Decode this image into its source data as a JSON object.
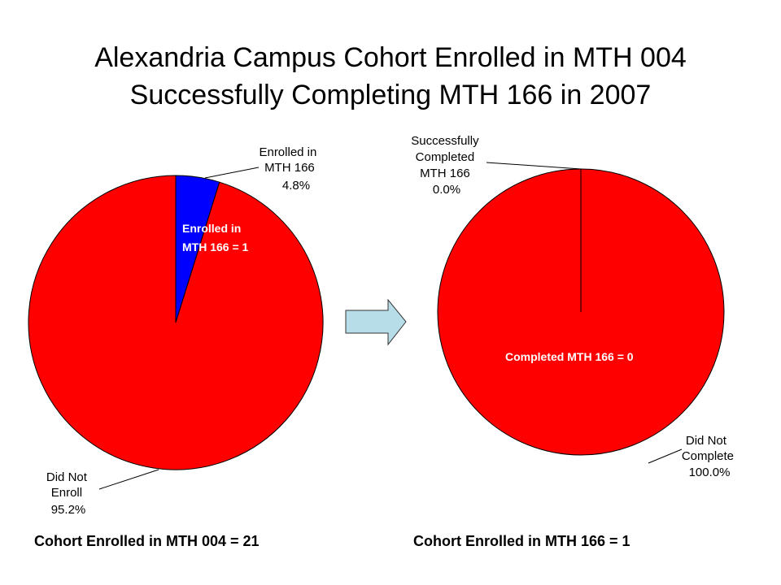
{
  "title": {
    "line1": "Alexandria Campus Cohort Enrolled in MTH 004",
    "line2": "Successfully Completing MTH 166 in 2007"
  },
  "colors": {
    "slice_red": "#ff0000",
    "slice_blue": "#0000ff",
    "arrow_fill": "#b7dde8"
  },
  "arrow": {
    "icon": "right-arrow-icon"
  },
  "chart_data": [
    {
      "type": "pie",
      "slices": [
        {
          "label_lines": [
            "Enrolled in",
            "MTH 166",
            "4.8%"
          ],
          "value": 4.8,
          "color": "#0000ff",
          "inside_label_lines": [
            "Enrolled in",
            "MTH 166 = 1"
          ]
        },
        {
          "label_lines": [
            "Did Not",
            "Enroll",
            "95.2%"
          ],
          "value": 95.2,
          "color": "#ff0000"
        }
      ],
      "caption": "Cohort Enrolled in MTH 004 = 21"
    },
    {
      "type": "pie",
      "slices": [
        {
          "label_lines": [
            "Successfully",
            "Completed",
            "MTH 166",
            "0.0%"
          ],
          "value": 0.0,
          "color": "#0000ff"
        },
        {
          "label_lines": [
            "Did Not",
            "Complete",
            "100.0%"
          ],
          "value": 100.0,
          "color": "#ff0000",
          "inside_label_lines": [
            "Completed MTH 166 = 0"
          ]
        }
      ],
      "caption": "Cohort Enrolled in MTH 166 = 1"
    }
  ]
}
